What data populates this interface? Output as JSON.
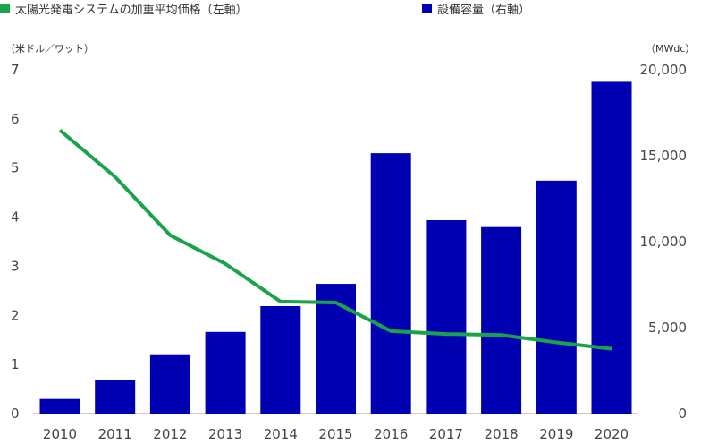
{
  "legend": {
    "line_label": "太陽光発電システムの加重平均価格（左軸）",
    "bar_label": "設備容量（右軸）",
    "line_color": "#1aa34a",
    "bar_color": "#0000b3"
  },
  "axis_units": {
    "left": "（米ドル／ワット）",
    "right": "（MWdc）"
  },
  "chart_data": {
    "type": "bar+line",
    "categories": [
      "2010",
      "2011",
      "2012",
      "2013",
      "2014",
      "2015",
      "2016",
      "2017",
      "2018",
      "2019",
      "2020"
    ],
    "series": [
      {
        "name": "設備容量（右軸）",
        "type": "bar",
        "axis": "right",
        "values": [
          850,
          1950,
          3400,
          4750,
          6250,
          7550,
          15150,
          11250,
          10850,
          13550,
          19300
        ]
      },
      {
        "name": "太陽光発電システムの加重平均価格（左軸）",
        "type": "line",
        "axis": "left",
        "values": [
          5.77,
          4.82,
          3.63,
          3.05,
          2.28,
          2.26,
          1.68,
          1.62,
          1.6,
          1.45,
          1.32
        ]
      }
    ],
    "y_left": {
      "ticks": [
        "0",
        "1",
        "2",
        "3",
        "4",
        "5",
        "6",
        "7"
      ],
      "range": [
        0,
        7
      ]
    },
    "y_right": {
      "ticks": [
        "0",
        "5,000",
        "10,000",
        "15,000",
        "20,000"
      ],
      "range": [
        0,
        20000
      ]
    },
    "grid": false,
    "legend_position": "top"
  }
}
